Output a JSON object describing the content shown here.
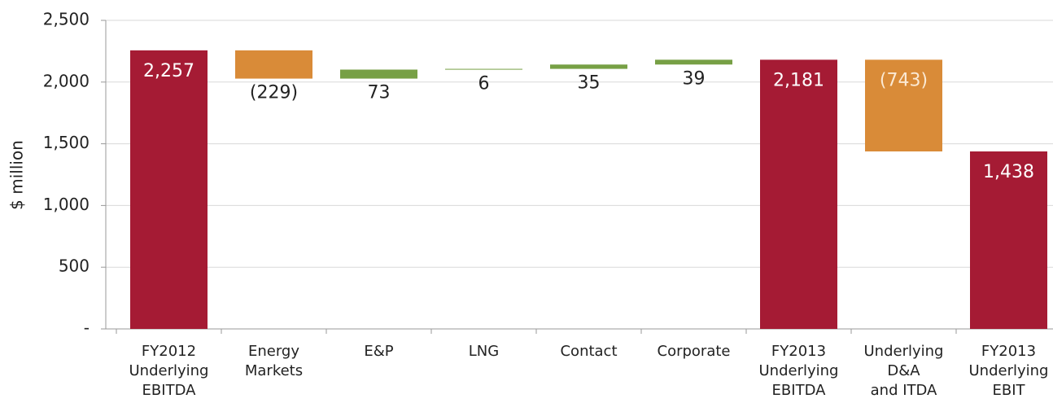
{
  "chart_data": {
    "type": "waterfall",
    "ylabel": "$ million",
    "categories": [
      [
        "FY2012",
        "Underlying",
        "EBITDA"
      ],
      [
        "Energy",
        "Markets"
      ],
      [
        "E&P"
      ],
      [
        "LNG"
      ],
      [
        "Contact"
      ],
      [
        "Corporate"
      ],
      [
        "FY2013",
        "Underlying",
        "EBITDA"
      ],
      [
        "Underlying",
        "D&A",
        "and ITDA"
      ],
      [
        "FY2013",
        "Underlying",
        "EBIT"
      ]
    ],
    "measure": [
      "total",
      "relative",
      "relative",
      "relative",
      "relative",
      "relative",
      "total",
      "relative",
      "total"
    ],
    "values": [
      2257,
      -229,
      73,
      6,
      35,
      39,
      2181,
      -743,
      1438
    ],
    "value_labels": [
      "2,257",
      "(229)",
      "73",
      "6",
      "35",
      "39",
      "2,181",
      "(743)",
      "1,438"
    ],
    "colors": {
      "total": "#a51b34",
      "increase": "#77a045",
      "decrease": "#d98b38"
    },
    "ylim": [
      0,
      2500
    ],
    "yticks": [
      {
        "value": 0,
        "label": "-"
      },
      500,
      {
        "value": 1000,
        "label": "1,000"
      },
      {
        "value": 1500,
        "label": "1,500"
      },
      {
        "value": 2000,
        "label": "2,000"
      },
      {
        "value": 2500,
        "label": "2,500"
      }
    ],
    "grid": true
  }
}
